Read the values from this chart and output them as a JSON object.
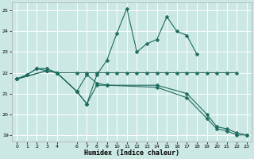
{
  "xlabel": "Humidex (Indice chaleur)",
  "bg_color": "#cce8e4",
  "grid_color": "#ffffff",
  "line_color": "#1e6b5e",
  "marker": "D",
  "marker_size": 2.5,
  "xlim": [
    -0.5,
    23.5
  ],
  "ylim": [
    18.7,
    25.4
  ],
  "yticks": [
    19,
    20,
    21,
    22,
    23,
    24,
    25
  ],
  "xticks": [
    0,
    1,
    2,
    3,
    4,
    6,
    7,
    8,
    9,
    10,
    11,
    12,
    13,
    14,
    15,
    16,
    17,
    18,
    19,
    20,
    21,
    22,
    23
  ],
  "xticklabels": [
    "0",
    "1",
    "2",
    "3",
    "4",
    "6",
    "7",
    "8",
    "9",
    "10",
    "11",
    "12",
    "13",
    "14",
    "15",
    "16",
    "17",
    "18",
    "19",
    "20",
    "21",
    "22",
    "23"
  ],
  "series": [
    {
      "x": [
        0,
        1,
        2,
        3,
        4,
        6,
        7,
        8,
        9,
        10,
        11,
        12,
        13,
        14,
        15,
        16,
        17,
        18
      ],
      "y": [
        21.7,
        21.9,
        22.2,
        22.2,
        22.0,
        21.1,
        20.5,
        21.9,
        22.6,
        23.9,
        25.1,
        23.0,
        23.4,
        23.6,
        24.7,
        24.0,
        23.8,
        22.9
      ]
    },
    {
      "x": [
        0,
        1,
        2,
        3,
        4,
        6,
        7,
        8,
        9,
        10,
        11,
        12,
        13,
        14,
        15,
        16,
        17,
        18,
        19,
        20,
        21,
        22
      ],
      "y": [
        21.7,
        21.9,
        22.2,
        22.1,
        22.0,
        22.0,
        22.0,
        22.0,
        22.0,
        22.0,
        22.0,
        22.0,
        22.0,
        22.0,
        22.0,
        22.0,
        22.0,
        22.0,
        22.0,
        22.0,
        22.0,
        22.0
      ]
    },
    {
      "x": [
        0,
        3,
        4,
        6,
        7,
        8,
        9,
        14,
        17,
        19,
        20,
        21,
        22,
        23
      ],
      "y": [
        21.7,
        22.1,
        22.0,
        21.1,
        21.9,
        21.5,
        21.4,
        21.4,
        21.0,
        20.0,
        19.4,
        19.3,
        19.1,
        19.0
      ]
    },
    {
      "x": [
        0,
        3,
        4,
        6,
        7,
        8,
        9,
        14,
        17,
        19,
        20,
        21,
        22,
        23
      ],
      "y": [
        21.7,
        22.1,
        22.0,
        21.1,
        20.5,
        21.4,
        21.4,
        21.3,
        20.8,
        19.8,
        19.3,
        19.2,
        19.0,
        19.0
      ]
    }
  ]
}
